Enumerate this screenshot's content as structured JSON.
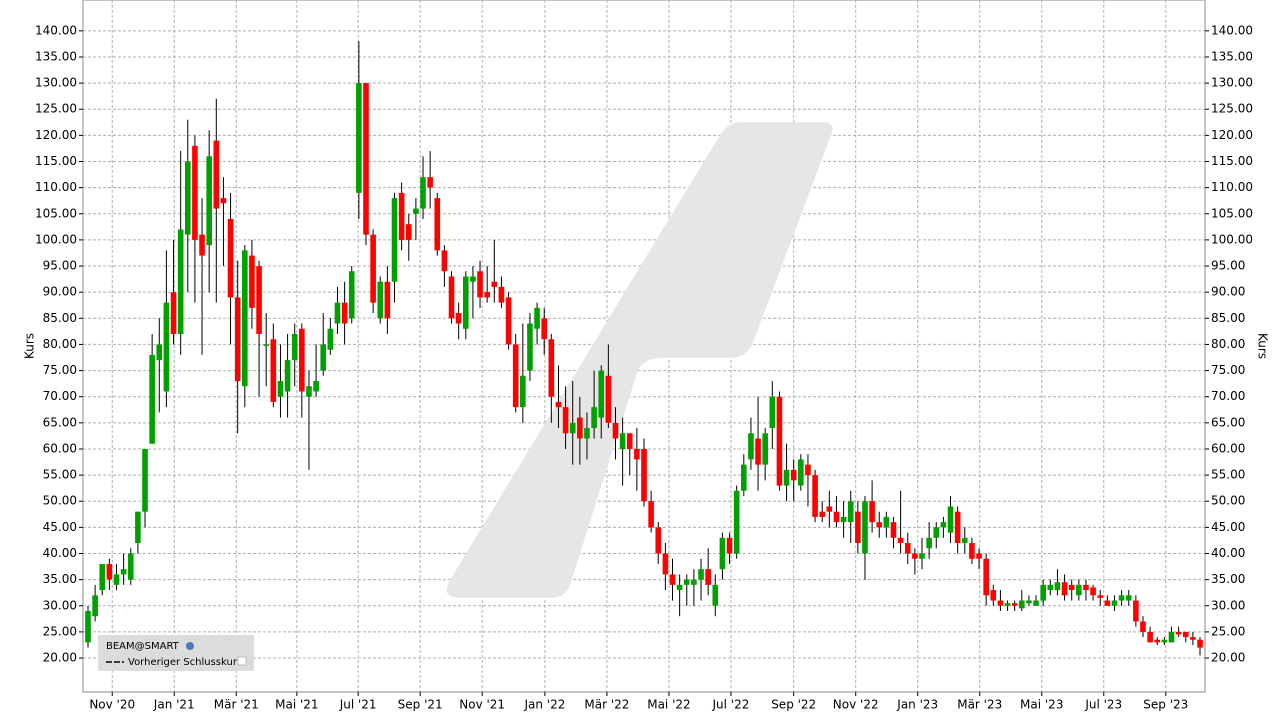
{
  "chart_data": {
    "type": "candlestick",
    "legend": [
      "BEAM@SMART",
      "Vorheriger Schlusskurs"
    ],
    "ylabel": "Kurs",
    "up_color": "#00a000",
    "down_color": "#ff0000",
    "grid": true,
    "xlim": [
      -0.7,
      156.7
    ],
    "xticks": [
      {
        "value": 3.4,
        "label": "Nov '20"
      },
      {
        "value": 12.1,
        "label": "Jan '21"
      },
      {
        "value": 20.8,
        "label": "Mär '21"
      },
      {
        "value": 29.3,
        "label": "Mai '21"
      },
      {
        "value": 37.9,
        "label": "Jul '21"
      },
      {
        "value": 46.6,
        "label": "Sep '21"
      },
      {
        "value": 55.3,
        "label": "Nov '21"
      },
      {
        "value": 64.1,
        "label": "Jan '22"
      },
      {
        "value": 72.8,
        "label": "Mär '22"
      },
      {
        "value": 81.5,
        "label": "Mai '22"
      },
      {
        "value": 90.2,
        "label": "Jul '22"
      },
      {
        "value": 99.0,
        "label": "Sep '22"
      },
      {
        "value": 107.7,
        "label": "Nov '22"
      },
      {
        "value": 116.4,
        "label": "Jan '23"
      },
      {
        "value": 125.1,
        "label": "Mär '23"
      },
      {
        "value": 133.8,
        "label": "Mai '23"
      },
      {
        "value": 142.5,
        "label": "Jul '23"
      },
      {
        "value": 151.2,
        "label": "Sep '23"
      }
    ],
    "ylim": [
      13.5,
      145.9
    ],
    "yticks": [
      {
        "value": 20,
        "label": "20.00"
      },
      {
        "value": 25,
        "label": "25.00"
      },
      {
        "value": 30,
        "label": "30.00"
      },
      {
        "value": 35,
        "label": "35.00"
      },
      {
        "value": 40,
        "label": "40.00"
      },
      {
        "value": 45,
        "label": "45.00"
      },
      {
        "value": 50,
        "label": "50.00"
      },
      {
        "value": 55,
        "label": "55.00"
      },
      {
        "value": 60,
        "label": "60.00"
      },
      {
        "value": 65,
        "label": "65.00"
      },
      {
        "value": 70,
        "label": "70.00"
      },
      {
        "value": 75,
        "label": "75.00"
      },
      {
        "value": 80,
        "label": "80.00"
      },
      {
        "value": 85,
        "label": "85.00"
      },
      {
        "value": 90,
        "label": "90.00"
      },
      {
        "value": 95,
        "label": "95.00"
      },
      {
        "value": 100,
        "label": "100.00"
      },
      {
        "value": 105,
        "label": "105.00"
      },
      {
        "value": 110,
        "label": "110.00"
      },
      {
        "value": 115,
        "label": "115.00"
      },
      {
        "value": 120,
        "label": "120.00"
      },
      {
        "value": 125,
        "label": "125.00"
      },
      {
        "value": 130,
        "label": "130.00"
      },
      {
        "value": 135,
        "label": "135.00"
      },
      {
        "value": 140,
        "label": "140.00"
      }
    ],
    "open": [
      23,
      28,
      33,
      38,
      34,
      36,
      35,
      42,
      48,
      61,
      77,
      71,
      90,
      82,
      101,
      118,
      101,
      99,
      119,
      108,
      104,
      89,
      72,
      97,
      95,
      80,
      81,
      70,
      71,
      77,
      83,
      70,
      71,
      75,
      79,
      84,
      88,
      85,
      109,
      130,
      101,
      85,
      92,
      92,
      109,
      103,
      105,
      106,
      112,
      108,
      98,
      93,
      86,
      83,
      92,
      94,
      90,
      92,
      91,
      89,
      80,
      68,
      75,
      83,
      85,
      81,
      69,
      68,
      63,
      66,
      62,
      64,
      66,
      74,
      65,
      60,
      63,
      60,
      60,
      50,
      45,
      40,
      36,
      33,
      34,
      34,
      35,
      37,
      30,
      37,
      43,
      40,
      52,
      58,
      62,
      57,
      64,
      70,
      53,
      56,
      53,
      57,
      55,
      48,
      49,
      48,
      46,
      46,
      48,
      40,
      50,
      46,
      45,
      46,
      43,
      42,
      40,
      39,
      41,
      43,
      45,
      44,
      48,
      42,
      42,
      40,
      39,
      33,
      31,
      30,
      30.5,
      29.5,
      30.5,
      30,
      31,
      33,
      33,
      34.5,
      34,
      32,
      34,
      33.5,
      32,
      31,
      30,
      31,
      31,
      31,
      27,
      25,
      23.5,
      23,
      23,
      25,
      25,
      24,
      23.5
    ],
    "high": [
      30,
      34,
      38,
      39,
      38,
      40,
      41,
      48,
      60,
      82,
      85,
      98,
      100,
      117,
      123,
      120,
      108,
      121,
      127,
      112,
      109,
      96,
      99,
      100,
      96,
      86,
      84,
      80,
      82,
      84,
      84,
      75,
      80,
      86,
      85,
      91,
      92,
      95,
      138,
      130,
      102,
      93,
      95,
      109,
      111,
      105,
      108,
      116,
      117,
      109,
      99,
      94,
      88,
      94,
      95,
      96,
      95,
      100,
      93,
      90,
      82,
      84,
      86,
      88,
      87,
      82,
      76,
      72,
      73,
      70,
      67,
      75,
      76,
      80,
      68,
      66,
      63,
      64,
      62,
      52,
      46,
      42,
      39,
      36,
      36,
      37,
      39,
      41,
      36,
      44,
      44,
      53,
      59,
      66,
      70,
      64,
      73,
      71,
      61,
      58,
      59,
      59,
      56,
      50,
      52,
      51,
      50,
      52,
      50,
      51,
      54,
      48,
      48,
      47,
      52,
      44,
      41,
      43,
      46,
      46,
      47,
      51,
      49,
      45,
      43,
      41,
      40,
      34,
      33,
      31,
      31,
      33,
      32,
      32,
      35,
      35,
      37,
      36,
      35,
      35,
      35,
      34,
      33,
      32,
      32,
      33,
      33,
      32,
      28,
      26,
      24,
      24,
      26,
      26,
      25,
      25,
      24
    ],
    "low": [
      22,
      27,
      32,
      33,
      33,
      34,
      34,
      40,
      45,
      61,
      67,
      68,
      80,
      78,
      90,
      88,
      78,
      90,
      88,
      95,
      80,
      63,
      68,
      83,
      70,
      72,
      68,
      66,
      66,
      72,
      66,
      56,
      70,
      74,
      78,
      82,
      80,
      84,
      104,
      99,
      86,
      84,
      82,
      88,
      98,
      96,
      100,
      104,
      106,
      97,
      91,
      84,
      81,
      81,
      85,
      87,
      88,
      88,
      87,
      79,
      67,
      65,
      73,
      80,
      78,
      65,
      64,
      60,
      57,
      57,
      58,
      62,
      62,
      64,
      58,
      53,
      55,
      52,
      49,
      44,
      38,
      33,
      31,
      28,
      30,
      30,
      31,
      32,
      28,
      35,
      38,
      39,
      51,
      56,
      52,
      54,
      60,
      52,
      50,
      50,
      52,
      49,
      46,
      46,
      45,
      45,
      43,
      42,
      40,
      35,
      44,
      43,
      43,
      41,
      40,
      38,
      36,
      37,
      39,
      41,
      43,
      42,
      40,
      40,
      38,
      37,
      30,
      30,
      29,
      29,
      29,
      29,
      30,
      30,
      30,
      32,
      32,
      31,
      31,
      31,
      31,
      31,
      30,
      30,
      29,
      30,
      30,
      26,
      24,
      23,
      22.5,
      22.5,
      23,
      24,
      23,
      22.5,
      20.5
    ],
    "close": [
      29,
      32,
      38,
      35,
      36,
      37,
      40,
      48,
      60,
      78,
      80,
      88,
      82,
      102,
      115,
      100,
      97,
      116,
      106,
      107,
      89,
      73,
      98,
      87,
      82,
      80,
      69,
      73,
      77,
      82,
      71,
      72,
      73,
      80,
      83,
      88,
      84,
      94,
      130,
      101,
      88,
      92,
      85,
      108,
      100,
      100,
      106,
      112,
      110,
      98,
      94,
      85,
      84,
      93,
      93,
      89,
      89,
      91,
      88,
      80,
      68,
      74,
      84,
      87,
      81,
      70,
      68,
      63,
      65,
      62,
      64,
      68,
      75,
      65,
      62,
      63,
      60,
      58,
      50,
      45,
      40,
      36,
      34,
      34,
      35,
      35,
      37,
      34,
      34,
      43,
      40,
      52,
      57,
      63,
      57,
      63,
      70,
      53,
      56,
      54,
      58,
      55,
      47,
      47,
      48,
      46,
      47,
      50,
      42,
      50,
      46,
      45,
      47,
      43,
      42,
      40,
      39,
      40,
      43,
      45,
      46,
      49,
      42,
      43,
      39,
      39,
      32,
      31,
      30,
      30.5,
      30,
      31,
      31,
      31,
      34,
      34,
      34.5,
      32,
      33,
      34,
      33,
      32,
      31.5,
      30,
      31,
      32,
      32,
      27,
      25,
      23,
      23,
      23.5,
      25,
      24.5,
      24,
      23.5,
      22
    ]
  }
}
